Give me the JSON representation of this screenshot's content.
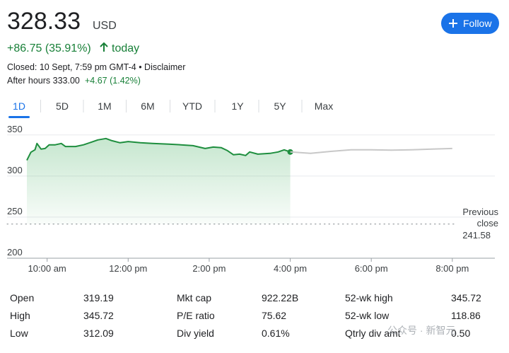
{
  "header": {
    "price": "328.33",
    "currency": "USD",
    "change": "+86.75 (35.91%)",
    "change_period": "today",
    "status": "Closed: 10 Sept, 7:59 pm GMT-4 • Disclaimer",
    "after_hours": "After hours 333.00",
    "after_hours_change": "+4.67 (1.42%)",
    "follow": "Follow"
  },
  "tabs": {
    "items": [
      "1D",
      "5D",
      "1M",
      "6M",
      "YTD",
      "1Y",
      "5Y",
      "Max"
    ],
    "selected": 0
  },
  "chart_data": {
    "type": "line",
    "xlim": [
      9.5,
      21.05
    ],
    "ylim": [
      200,
      355
    ],
    "xticks": [
      {
        "value": 10,
        "label": "10:00 am"
      },
      {
        "value": 12,
        "label": "12:00 pm"
      },
      {
        "value": 14,
        "label": "2:00 pm"
      },
      {
        "value": 16,
        "label": "4:00 pm"
      },
      {
        "value": 18,
        "label": "6:00 pm"
      },
      {
        "value": 20,
        "label": "8:00 pm"
      }
    ],
    "yticks": [
      200,
      250,
      300,
      350
    ],
    "grid": true,
    "reference_line": {
      "value": 241.58,
      "label": [
        "Previous",
        "close"
      ]
    },
    "series": [
      {
        "color": "#1e8e3e",
        "area": true,
        "x": [
          9.5,
          9.6,
          9.7,
          9.75,
          9.85,
          9.95,
          10.05,
          10.2,
          10.35,
          10.45,
          10.7,
          10.9,
          11.1,
          11.25,
          11.45,
          11.6,
          11.8,
          12.0,
          12.3,
          12.6,
          13.0,
          13.3,
          13.6,
          13.9,
          14.1,
          14.3,
          14.45,
          14.6,
          14.75,
          14.9,
          15.0,
          15.2,
          15.5,
          15.7,
          15.85,
          16.0
        ],
        "values": [
          319.2,
          329,
          332,
          339.7,
          332.8,
          333.6,
          338,
          338,
          339.7,
          336,
          336,
          338,
          341.4,
          344,
          345.7,
          343,
          340.5,
          342,
          340.5,
          339.7,
          338.8,
          338,
          337,
          333.6,
          335.3,
          334.5,
          331,
          325.9,
          326.7,
          325,
          329.3,
          326.7,
          327.6,
          329.3,
          331.9,
          329.3
        ]
      },
      {
        "color": "#c8c8c8",
        "area": false,
        "x": [
          16.0,
          16.5,
          17.0,
          17.5,
          18.0,
          18.5,
          19.0,
          19.5,
          20.0
        ],
        "values": [
          329.3,
          327.6,
          330,
          332,
          332,
          331.5,
          332,
          332.8,
          333.6
        ]
      }
    ]
  },
  "stats": {
    "rows": [
      [
        "Open",
        "319.19",
        "Mkt cap",
        "922.22B",
        "52-wk high",
        "345.72"
      ],
      [
        "High",
        "345.72",
        "P/E ratio",
        "75.62",
        "52-wk low",
        "118.86"
      ],
      [
        "Low",
        "312.09",
        "Div yield",
        "0.61%",
        "Qtrly div amt",
        "0.50"
      ]
    ]
  },
  "watermark": "公众号 · 新智元"
}
